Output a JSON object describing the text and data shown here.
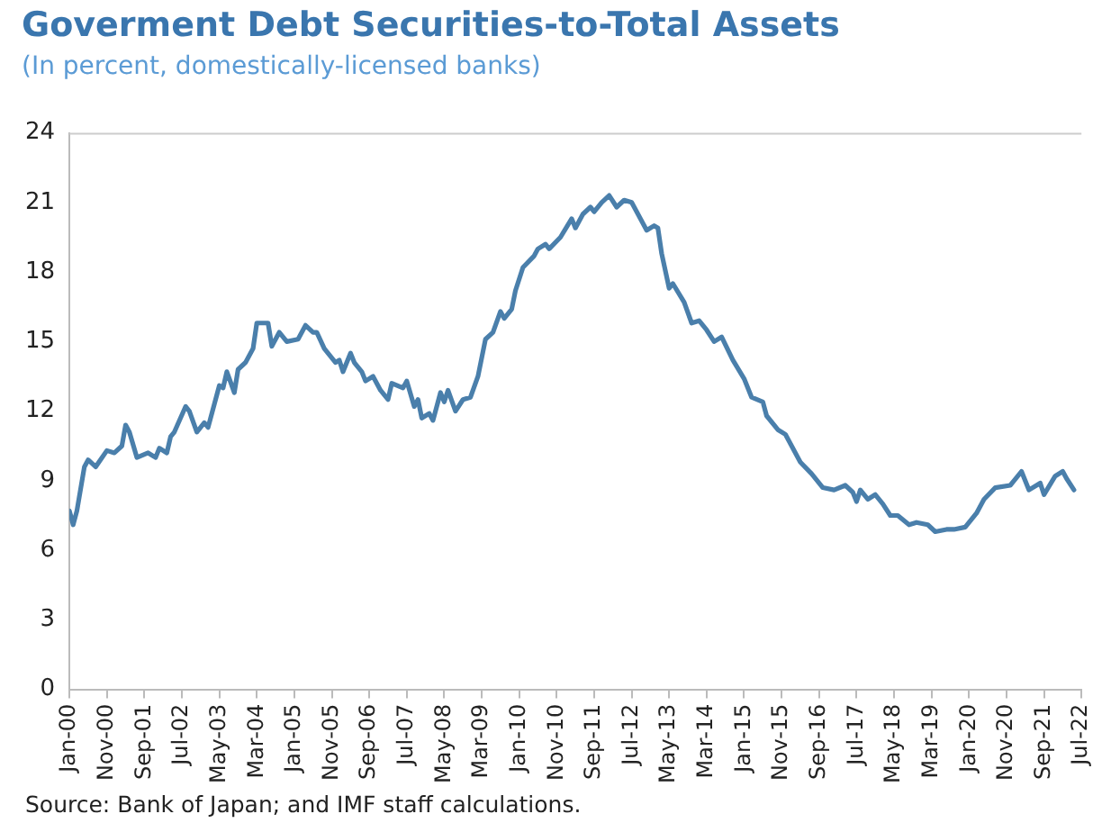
{
  "chart_data": {
    "type": "line",
    "title": "Goverment Debt Securities-to-Total Assets",
    "subtitle": "(In percent, domestically-licensed banks)",
    "annotations": [
      "Source: Bank of Japan; and IMF staff calculations."
    ],
    "x": [
      "2000-01",
      "2000-02",
      "2000-03",
      "2000-05",
      "2000-06",
      "2000-08",
      "2000-11",
      "2001-01",
      "2001-03",
      "2001-04",
      "2001-05",
      "2001-07",
      "2001-10",
      "2001-12",
      "2002-01",
      "2002-03",
      "2002-04",
      "2002-05",
      "2002-08",
      "2002-09",
      "2002-11",
      "2003-01",
      "2003-02",
      "2003-05",
      "2003-06",
      "2003-07",
      "2003-09",
      "2003-10",
      "2003-12",
      "2004-02",
      "2004-03",
      "2004-06",
      "2004-07",
      "2004-09",
      "2004-11",
      "2005-02",
      "2005-04",
      "2005-06",
      "2005-07",
      "2005-09",
      "2005-12",
      "2006-01",
      "2006-02",
      "2006-04",
      "2006-05",
      "2006-07",
      "2006-08",
      "2006-10",
      "2006-12",
      "2007-02",
      "2007-03",
      "2007-06",
      "2007-07",
      "2007-09",
      "2007-10",
      "2007-11",
      "2008-01",
      "2008-02",
      "2008-04",
      "2008-05",
      "2008-06",
      "2008-08",
      "2008-10",
      "2008-12",
      "2009-02",
      "2009-04",
      "2009-06",
      "2009-08",
      "2009-09",
      "2009-11",
      "2009-12",
      "2010-02",
      "2010-05",
      "2010-06",
      "2010-08",
      "2010-09",
      "2010-12",
      "2011-03",
      "2011-04",
      "2011-06",
      "2011-08",
      "2011-09",
      "2011-11",
      "2012-01",
      "2012-03",
      "2012-05",
      "2012-07",
      "2012-11",
      "2013-01",
      "2013-02",
      "2013-03",
      "2013-05",
      "2013-06",
      "2013-09",
      "2013-11",
      "2014-01",
      "2014-03",
      "2014-05",
      "2014-07",
      "2014-10",
      "2015-01",
      "2015-03",
      "2015-06",
      "2015-07",
      "2015-10",
      "2015-12",
      "2016-04",
      "2016-07",
      "2016-10",
      "2017-01",
      "2017-04",
      "2017-06",
      "2017-07",
      "2017-08",
      "2017-10",
      "2017-12",
      "2018-02",
      "2018-04",
      "2018-06",
      "2018-09",
      "2018-11",
      "2019-02",
      "2019-04",
      "2019-07",
      "2019-09",
      "2019-12",
      "2020-03",
      "2020-05",
      "2020-08",
      "2020-12",
      "2021-01",
      "2021-03",
      "2021-05",
      "2021-08",
      "2021-09",
      "2021-12",
      "2022-02",
      "2022-03",
      "2022-05"
    ],
    "series": [
      {
        "color": "#4a7fab",
        "values": [
          7.7,
          7.1,
          7.7,
          9.6,
          9.9,
          9.6,
          10.3,
          10.2,
          10.5,
          11.4,
          11.1,
          10.0,
          10.2,
          10.0,
          10.4,
          10.2,
          10.9,
          11.1,
          12.2,
          12.0,
          11.1,
          11.5,
          11.3,
          13.1,
          13.0,
          13.7,
          12.8,
          13.8,
          14.1,
          14.7,
          15.8,
          15.8,
          14.8,
          15.4,
          15.0,
          15.1,
          15.7,
          15.4,
          15.4,
          14.7,
          14.1,
          14.2,
          13.7,
          14.5,
          14.1,
          13.7,
          13.3,
          13.5,
          12.9,
          12.5,
          13.2,
          13.0,
          13.3,
          12.2,
          12.5,
          11.7,
          11.9,
          11.6,
          12.8,
          12.4,
          12.9,
          12.0,
          12.5,
          12.6,
          13.5,
          15.1,
          15.4,
          16.3,
          16.0,
          16.4,
          17.2,
          18.2,
          18.7,
          19.0,
          19.2,
          19.0,
          19.5,
          20.3,
          19.9,
          20.5,
          20.8,
          20.6,
          21.0,
          21.3,
          20.8,
          21.1,
          21.0,
          19.8,
          20.0,
          19.9,
          18.8,
          17.3,
          17.5,
          16.7,
          15.8,
          15.9,
          15.5,
          15.0,
          15.2,
          14.2,
          13.4,
          12.6,
          12.4,
          11.8,
          11.2,
          11.0,
          9.8,
          9.3,
          8.7,
          8.6,
          8.8,
          8.5,
          8.1,
          8.6,
          8.2,
          8.4,
          8.0,
          7.5,
          7.5,
          7.1,
          7.2,
          7.1,
          6.8,
          6.9,
          6.9,
          7.0,
          7.6,
          8.2,
          8.7,
          8.8,
          9.0,
          9.4,
          8.6,
          8.9,
          8.4,
          9.2,
          9.4,
          9.1,
          8.6
        ]
      }
    ],
    "xlim": [
      "2000-01",
      "2022-07"
    ],
    "xticks": [
      {
        "value": "2000-01",
        "label": "Jan-00"
      },
      {
        "value": "2000-11",
        "label": "Nov-00"
      },
      {
        "value": "2001-09",
        "label": "Sep-01"
      },
      {
        "value": "2002-07",
        "label": "Jul-02"
      },
      {
        "value": "2003-05",
        "label": "May-03"
      },
      {
        "value": "2004-03",
        "label": "Mar-04"
      },
      {
        "value": "2005-01",
        "label": "Jan-05"
      },
      {
        "value": "2005-11",
        "label": "Nov-05"
      },
      {
        "value": "2006-09",
        "label": "Sep-06"
      },
      {
        "value": "2007-07",
        "label": "Jul-07"
      },
      {
        "value": "2008-05",
        "label": "May-08"
      },
      {
        "value": "2009-03",
        "label": "Mar-09"
      },
      {
        "value": "2010-01",
        "label": "Jan-10"
      },
      {
        "value": "2010-11",
        "label": "Nov-10"
      },
      {
        "value": "2011-09",
        "label": "Sep-11"
      },
      {
        "value": "2012-07",
        "label": "Jul-12"
      },
      {
        "value": "2013-05",
        "label": "May-13"
      },
      {
        "value": "2014-03",
        "label": "Mar-14"
      },
      {
        "value": "2015-01",
        "label": "Jan-15"
      },
      {
        "value": "2015-11",
        "label": "Nov-15"
      },
      {
        "value": "2016-09",
        "label": "Sep-16"
      },
      {
        "value": "2017-07",
        "label": "Jul-17"
      },
      {
        "value": "2018-05",
        "label": "May-18"
      },
      {
        "value": "2019-03",
        "label": "Mar-19"
      },
      {
        "value": "2020-01",
        "label": "Jan-20"
      },
      {
        "value": "2020-11",
        "label": "Nov-20"
      },
      {
        "value": "2021-09",
        "label": "Sep-21"
      },
      {
        "value": "2022-07",
        "label": "Jul-22"
      }
    ],
    "ylim": [
      0,
      24
    ],
    "yticks": [
      0,
      3,
      6,
      9,
      12,
      15,
      18,
      21,
      24
    ],
    "grid": false,
    "legend": false,
    "marker": "none",
    "line_style": "solid"
  }
}
